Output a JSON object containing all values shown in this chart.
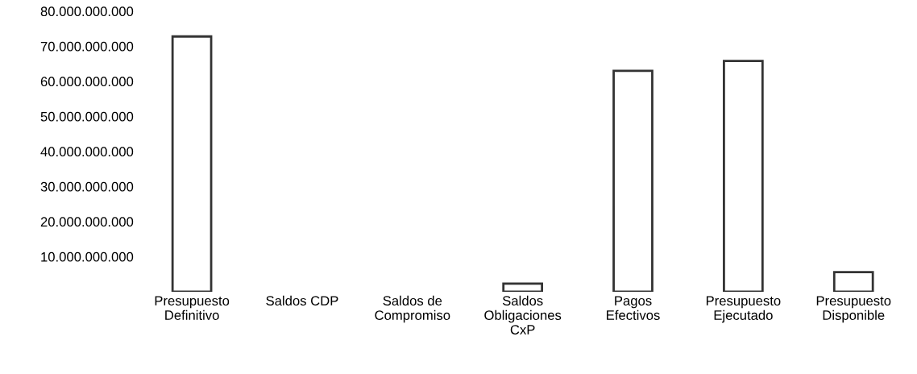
{
  "chart_data": {
    "type": "bar",
    "categories": [
      "Presupuesto\nDefinitivo",
      "Saldos CDP",
      "Saldos de\nCompromiso",
      "Saldos\nObligaciones\nCxP",
      "Pagos\nEfectivos",
      "Presupuesto\nEjecutado",
      "Presupuesto\nDisponible"
    ],
    "values": [
      72800000000,
      0,
      0,
      2300000000,
      63000000000,
      65800000000,
      5600000000
    ],
    "color": "#ffffff",
    "ylim": [
      0,
      80000000000
    ],
    "yticks": [
      {
        "value": 10000000000,
        "label": "10.000.000.000"
      },
      {
        "value": 20000000000,
        "label": "20.000.000.000"
      },
      {
        "value": 30000000000,
        "label": "30.000.000.000"
      },
      {
        "value": 40000000000,
        "label": "40.000.000.000"
      },
      {
        "value": 50000000000,
        "label": "50.000.000.000"
      },
      {
        "value": 60000000000,
        "label": "60.000.000.000"
      },
      {
        "value": 70000000000,
        "label": "70.000.000.000"
      },
      {
        "value": 80000000000,
        "label": "80.000.000.000"
      }
    ],
    "grid": false
  }
}
